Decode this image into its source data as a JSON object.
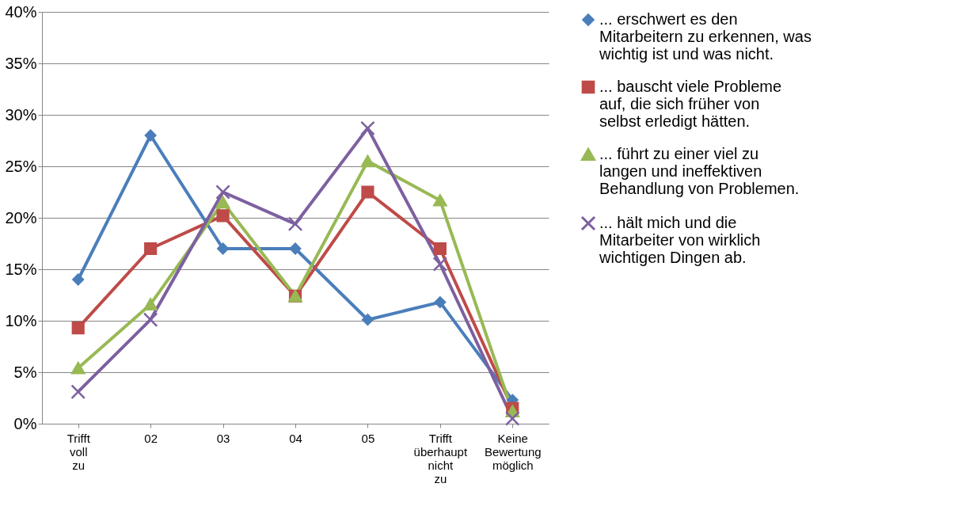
{
  "chart_data": {
    "type": "line",
    "categories": [
      "Trifft voll zu",
      "02",
      "03",
      "04",
      "05",
      "Trifft überhaupt nicht zu",
      "Keine Bewertung möglich"
    ],
    "ylim": [
      0,
      40
    ],
    "yticks": [
      {
        "value": 0,
        "label": "0%"
      },
      {
        "value": 5,
        "label": "5%"
      },
      {
        "value": 10,
        "label": "10%"
      },
      {
        "value": 15,
        "label": "15%"
      },
      {
        "value": 20,
        "label": "20%"
      },
      {
        "value": 25,
        "label": "25%"
      },
      {
        "value": 30,
        "label": "30%"
      },
      {
        "value": 35,
        "label": "35%"
      },
      {
        "value": 40,
        "label": "40%"
      }
    ],
    "grid": "y",
    "legend": "right",
    "series": [
      {
        "name": "... erschwert es den Mitarbeitern zu erkennen, was wichtig ist und was nicht.",
        "color": "#4a7ebb",
        "marker": "diamond",
        "values": [
          14.0,
          28.0,
          17.0,
          17.0,
          10.1,
          11.8,
          2.3
        ]
      },
      {
        "name": "... bauscht viele Probleme auf, die sich früher von selbst erledigt hätten.",
        "color": "#be4b48",
        "marker": "square",
        "values": [
          9.3,
          17.0,
          20.2,
          12.4,
          22.5,
          17.0,
          1.5
        ]
      },
      {
        "name": "... führt zu einer viel zu langen und ineffektiven Behandlung von Problemen.",
        "color": "#98b954",
        "marker": "triangle",
        "values": [
          5.4,
          11.6,
          21.5,
          12.4,
          25.5,
          21.7,
          1.2
        ]
      },
      {
        "name": "... hält mich und die Mitarbeiter von wirklich wichtigen Dingen ab.",
        "color": "#7d60a0",
        "marker": "cross",
        "values": [
          3.1,
          10.1,
          22.5,
          19.4,
          28.7,
          15.5,
          0.5
        ]
      }
    ]
  }
}
